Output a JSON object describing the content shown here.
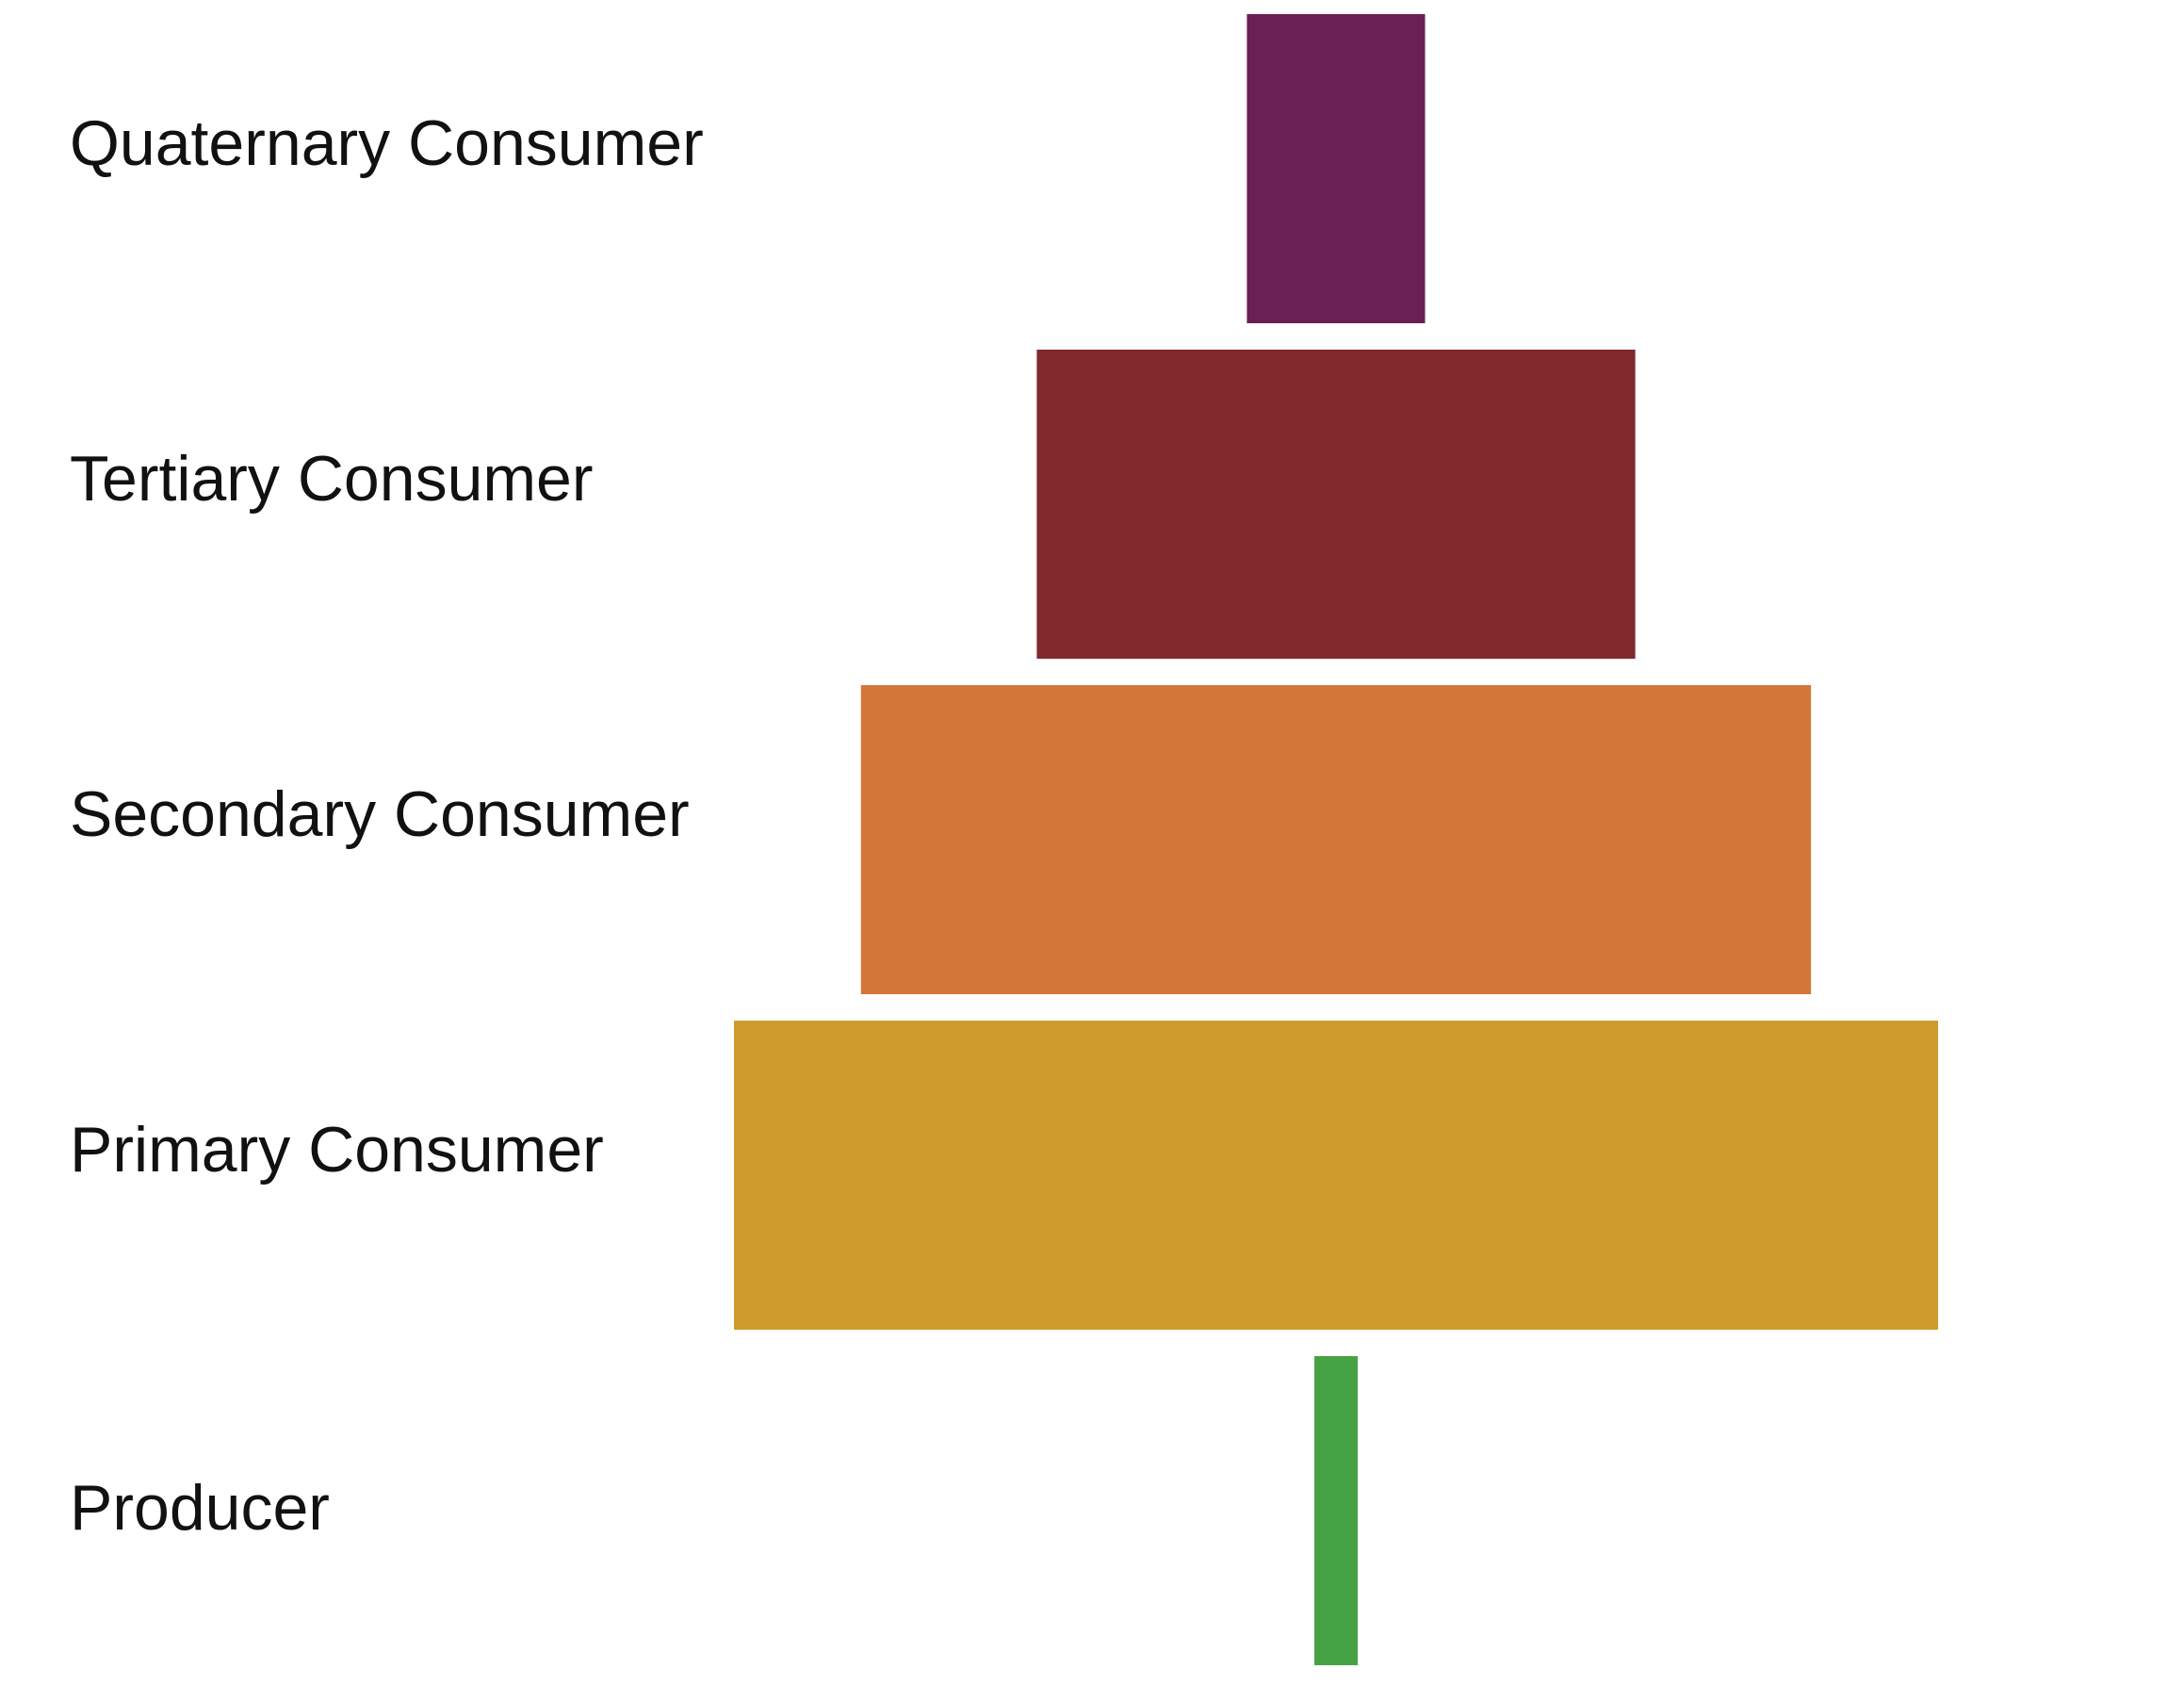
{
  "levels": [
    {
      "label": "Quaternary Consumer",
      "value": 0.148,
      "color": "#6A1F55"
    },
    {
      "label": "Tertiary Consumer",
      "value": 0.497,
      "color": "#7F292B"
    },
    {
      "label": "Secondary Consumer",
      "value": 0.789,
      "color": "#D3763A"
    },
    {
      "label": "Primary Consumer",
      "value": 1.0,
      "color": "#CE9C2A"
    },
    {
      "label": "Producer",
      "value": 0.036,
      "color": "#46A343"
    }
  ]
}
